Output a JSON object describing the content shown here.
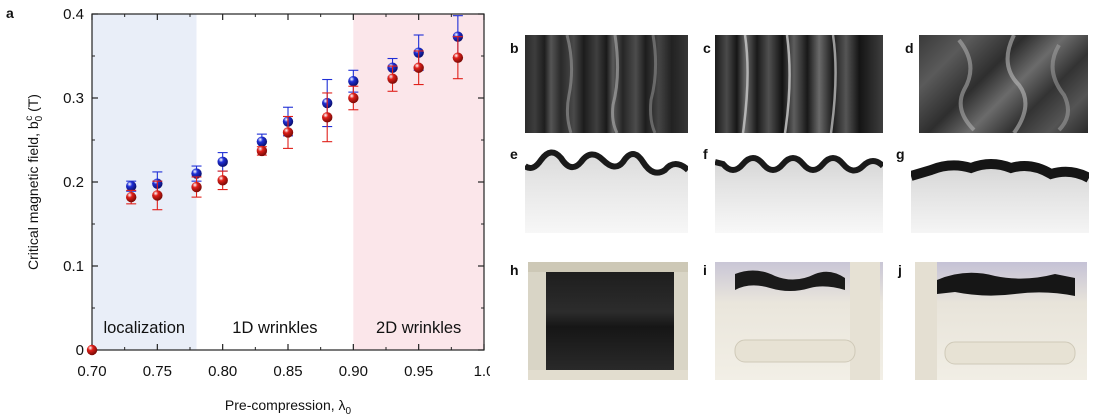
{
  "figure": {
    "panel_a_label": "a",
    "photo_panels": [
      {
        "label": "b",
        "name": "photo-b"
      },
      {
        "label": "c",
        "name": "photo-c"
      },
      {
        "label": "d",
        "name": "photo-d"
      },
      {
        "label": "e",
        "name": "photo-e"
      },
      {
        "label": "f",
        "name": "photo-f"
      },
      {
        "label": "g",
        "name": "photo-g"
      },
      {
        "label": "h",
        "name": "photo-h"
      },
      {
        "label": "i",
        "name": "photo-i"
      },
      {
        "label": "j",
        "name": "photo-j"
      }
    ]
  },
  "chart_data": {
    "type": "scatter",
    "xlabel": "Pre-compression, λ0",
    "xlabel_main": "Pre-compression, λ",
    "xlabel_sub": "0",
    "ylabel": "Critical magnetic field, b0c (T)",
    "ylabel_main": "Critical magnetic field, b",
    "ylabel_sub": "0",
    "ylabel_sup": "c",
    "ylabel_unit": " (T)",
    "xlim": [
      0.7,
      1.0
    ],
    "ylim": [
      0,
      0.4
    ],
    "x_ticks": [
      "0.70",
      "0.75",
      "0.80",
      "0.85",
      "0.90",
      "0.95",
      "1.0"
    ],
    "x_tick_values": [
      0.7,
      0.75,
      0.8,
      0.85,
      0.9,
      0.95,
      1.0
    ],
    "y_ticks": [
      "0",
      "0.1",
      "0.2",
      "0.3",
      "0.4"
    ],
    "y_tick_values": [
      0,
      0.1,
      0.2,
      0.3,
      0.4
    ],
    "regions": [
      {
        "label": "localization",
        "x_range": [
          0.7,
          0.78
        ],
        "color": "#e9eef8"
      },
      {
        "label": "1D wrinkles",
        "x_range": [
          0.78,
          0.9
        ],
        "color": "#ffffff"
      },
      {
        "label": "2D wrinkles",
        "x_range": [
          0.9,
          1.0
        ],
        "color": "#fbe6ea"
      }
    ],
    "series": [
      {
        "color": "#1f2fd6",
        "x": [
          0.73,
          0.75,
          0.78,
          0.8,
          0.83,
          0.85,
          0.88,
          0.9,
          0.93,
          0.95,
          0.98
        ],
        "y": [
          0.195,
          0.198,
          0.21,
          0.224,
          0.248,
          0.272,
          0.294,
          0.32,
          0.336,
          0.354,
          0.373
        ],
        "err": [
          0.006,
          0.014,
          0.009,
          0.011,
          0.009,
          0.017,
          0.028,
          0.013,
          0.011,
          0.021,
          0.025
        ]
      },
      {
        "color": "#e0201a",
        "x": [
          0.7,
          0.73,
          0.75,
          0.78,
          0.8,
          0.83,
          0.85,
          0.88,
          0.9,
          0.93,
          0.95,
          0.98
        ],
        "y": [
          0.0,
          0.182,
          0.184,
          0.194,
          0.202,
          0.237,
          0.259,
          0.277,
          0.3,
          0.323,
          0.336,
          0.348
        ],
        "err": [
          0.0,
          0.008,
          0.017,
          0.012,
          0.011,
          0.005,
          0.019,
          0.029,
          0.014,
          0.015,
          0.02,
          0.025
        ]
      }
    ]
  }
}
